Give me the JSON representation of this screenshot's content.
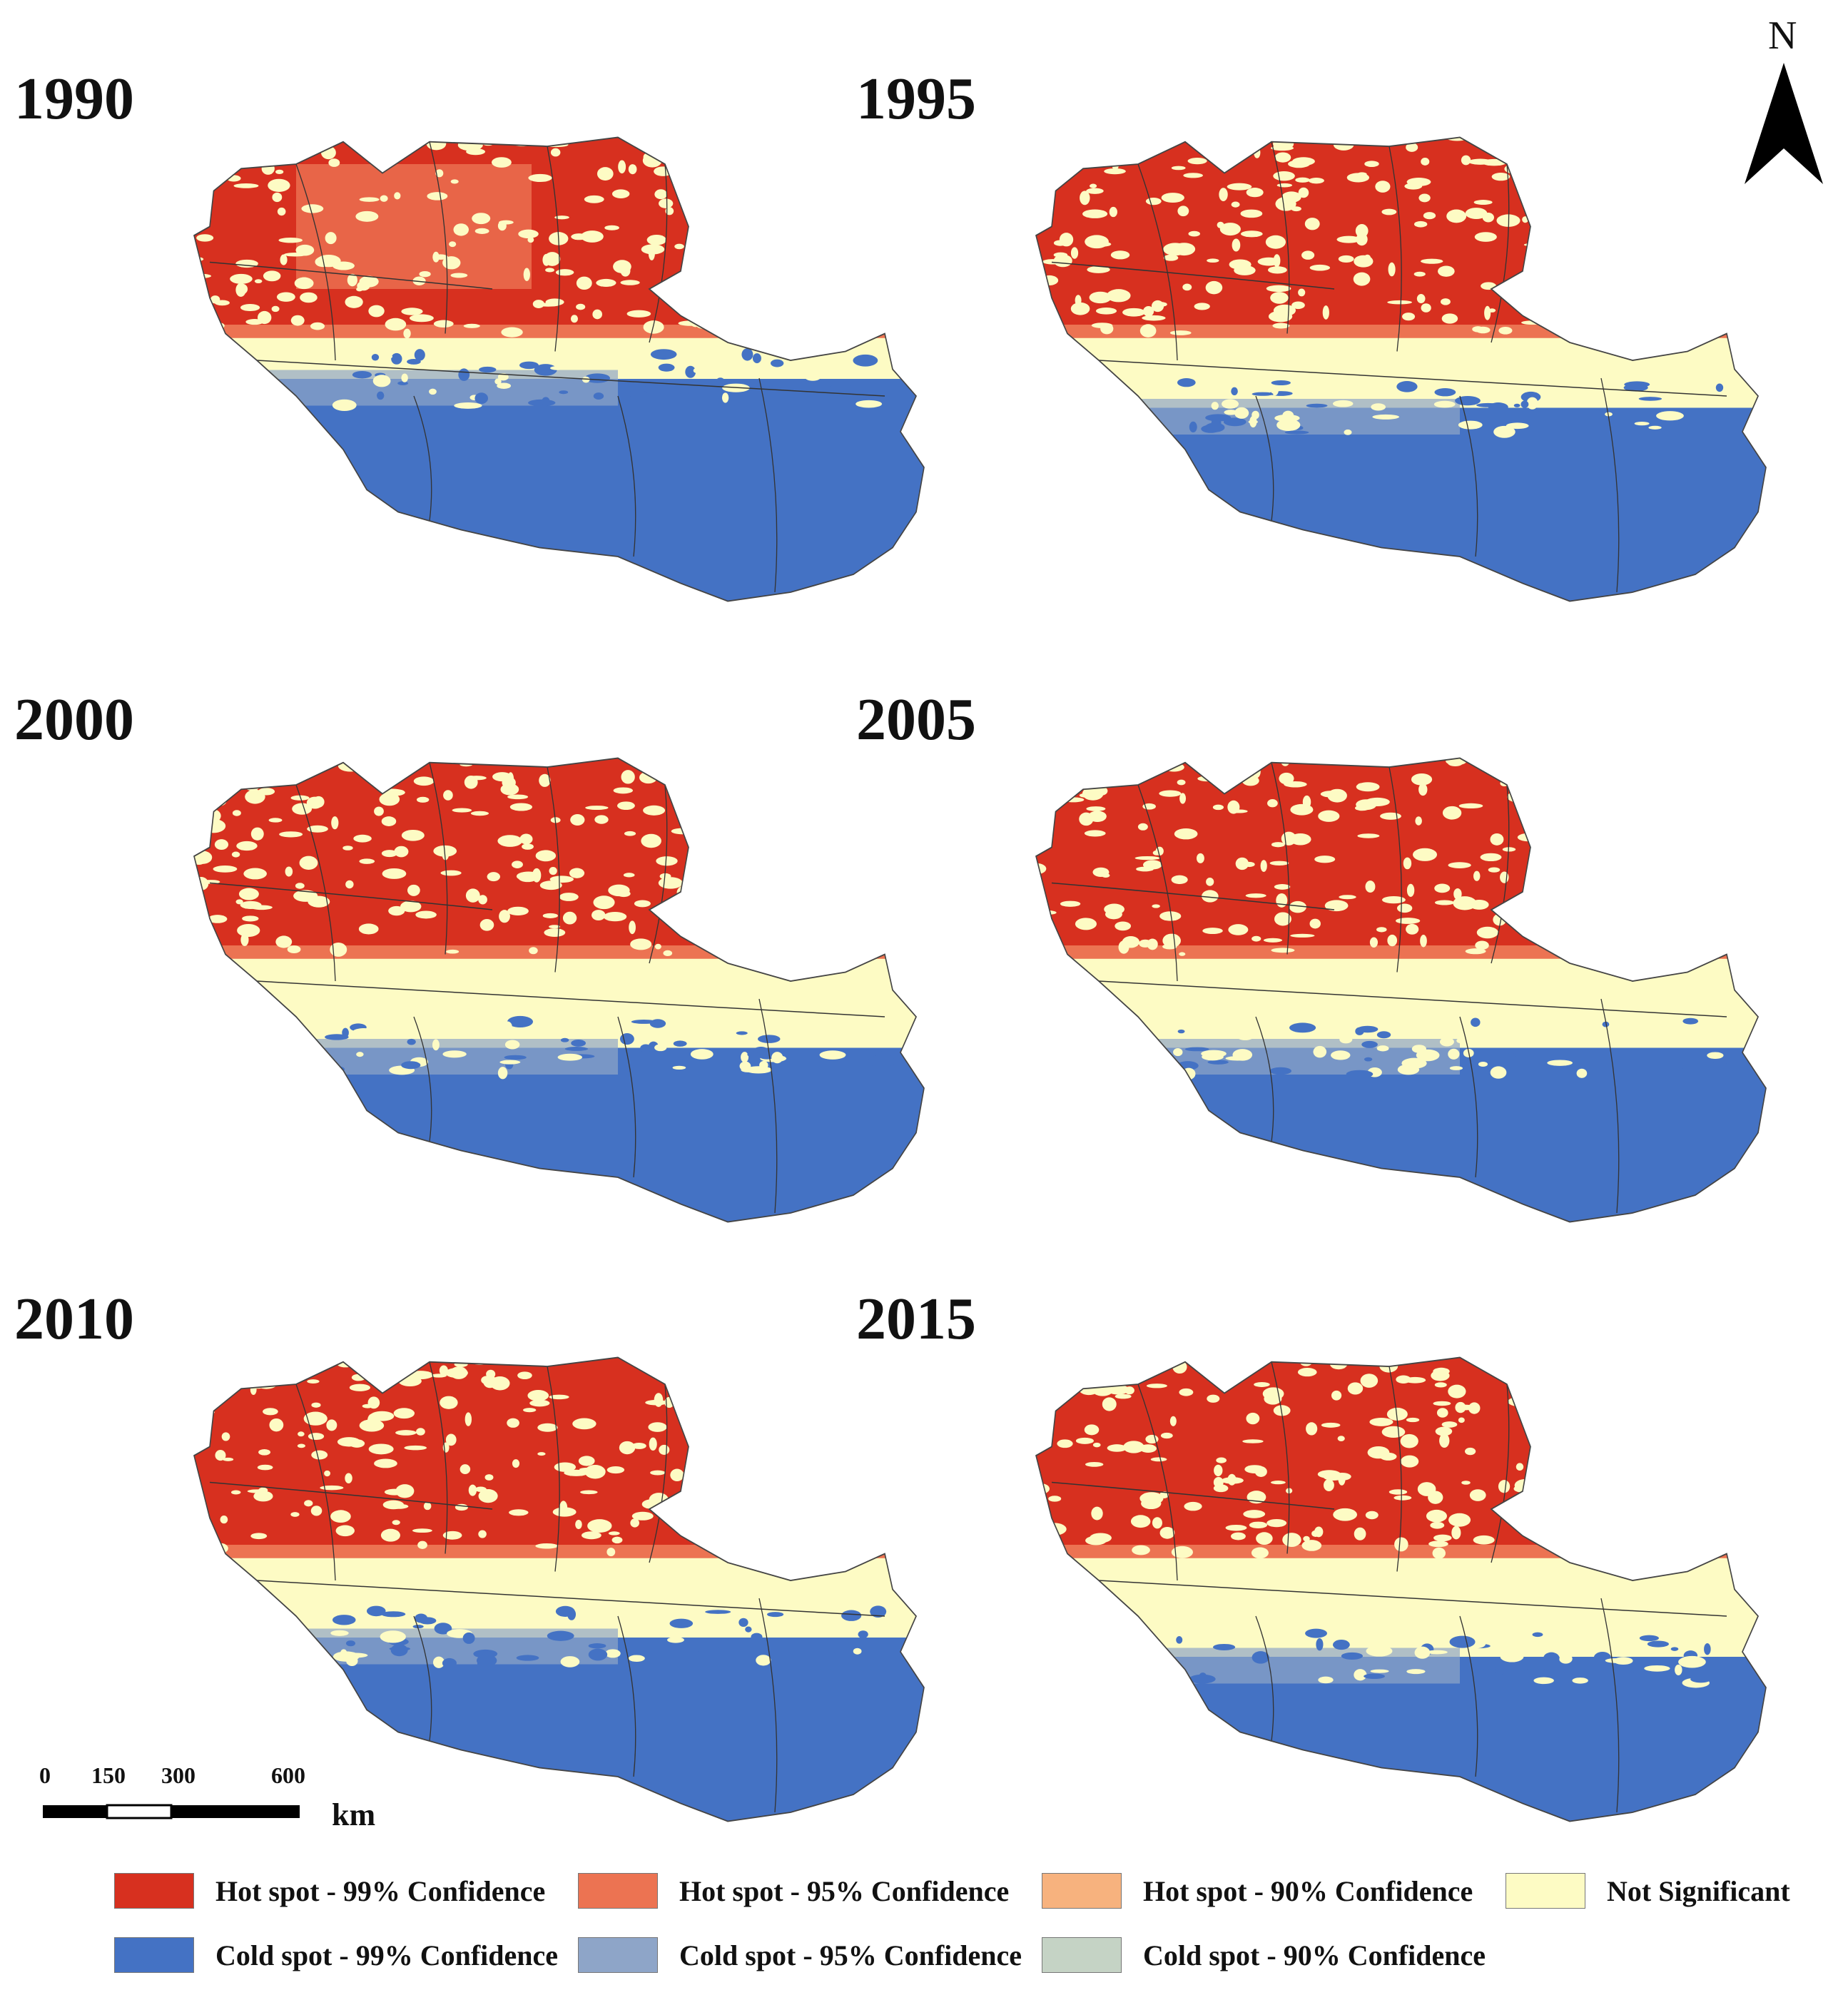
{
  "panels": [
    {
      "year": "1990"
    },
    {
      "year": "1995"
    },
    {
      "year": "2000"
    },
    {
      "year": "2005"
    },
    {
      "year": "2010"
    },
    {
      "year": "2015"
    }
  ],
  "north_arrow": {
    "label": "N"
  },
  "scale_bar": {
    "ticks": [
      "0",
      "150",
      "300",
      "600"
    ],
    "unit": "km"
  },
  "legend": [
    {
      "label": "Hot spot - 99% Confidence",
      "color": "#d7301f"
    },
    {
      "label": "Hot spot - 95% Confidence",
      "color": "#ec7352"
    },
    {
      "label": "Hot spot - 90% Confidence",
      "color": "#f7b27e"
    },
    {
      "label": "Not Significant",
      "color": "#fdfbc4"
    },
    {
      "label": "Cold spot - 99% Confidence",
      "color": "#4472c4"
    },
    {
      "label": "Cold spot - 95% Confidence",
      "color": "#8ea5c8"
    },
    {
      "label": "Cold spot - 90% Confidence",
      "color": "#c5d3c5"
    }
  ]
}
